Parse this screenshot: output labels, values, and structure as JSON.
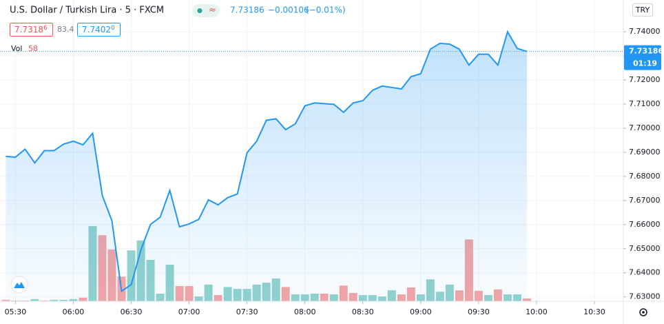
{
  "header": {
    "title": "U.S. Dollar / Turkish Lira · 5 · FXCM",
    "symbol_button": "≈",
    "quote": {
      "last": "7.73186",
      "change": "−0.00106",
      "change_pct": "(−0.01%)"
    },
    "bid": "7.7318",
    "bid_sup": "6",
    "spread": "83.4",
    "ask": "7.7402",
    "ask_sup": "0",
    "volume_label": "Vol",
    "volume_value": "58",
    "currency_button": "TRY",
    "countdown": "01:19"
  },
  "chart_data": {
    "type": "area",
    "x": [
      "05:25",
      "05:30",
      "05:35",
      "05:40",
      "05:45",
      "05:50",
      "05:55",
      "06:00",
      "06:05",
      "06:10",
      "06:15",
      "06:20",
      "06:25",
      "06:30",
      "06:35",
      "06:40",
      "06:45",
      "06:50",
      "06:55",
      "07:00",
      "07:05",
      "07:10",
      "07:15",
      "07:20",
      "07:25",
      "07:30",
      "07:35",
      "07:40",
      "07:45",
      "07:50",
      "07:55",
      "08:00",
      "08:05",
      "08:10",
      "08:15",
      "08:20",
      "08:25",
      "08:30",
      "08:35",
      "08:40",
      "08:45",
      "08:50",
      "08:55",
      "09:00",
      "09:05",
      "09:10",
      "09:15",
      "09:20",
      "09:25",
      "09:30",
      "09:35",
      "09:40",
      "09:45",
      "09:50",
      "09:55"
    ],
    "series": [
      {
        "name": "Price",
        "color": "#2196f3",
        "values": [
          7.6883,
          7.688,
          7.6913,
          7.6856,
          7.6907,
          7.6907,
          7.6934,
          7.6946,
          7.6931,
          7.6979,
          7.6721,
          7.6616,
          7.6324,
          7.6351,
          7.6495,
          7.6601,
          7.6631,
          7.6742,
          7.6591,
          7.6603,
          7.6622,
          7.6703,
          7.6682,
          7.6712,
          7.6727,
          7.6898,
          7.6946,
          7.7033,
          7.7039,
          7.6994,
          7.7018,
          7.7093,
          7.7105,
          7.7102,
          7.7099,
          7.7066,
          7.7105,
          7.7114,
          7.7157,
          7.7175,
          7.7169,
          7.7163,
          7.7214,
          7.7226,
          7.7328,
          7.7352,
          7.7349,
          7.7328,
          7.7262,
          7.7307,
          7.7307,
          7.7262,
          7.74,
          7.7331,
          7.73186
        ]
      },
      {
        "name": "Volume",
        "type": "bar",
        "axis": "y2",
        "values": [
          30,
          15,
          15,
          45,
          15,
          30,
          30,
          45,
          75,
          1580,
          1390,
          1090,
          520,
          1070,
          1280,
          870,
          160,
          770,
          320,
          320,
          100,
          350,
          130,
          300,
          260,
          260,
          350,
          390,
          480,
          300,
          145,
          145,
          160,
          160,
          145,
          330,
          175,
          130,
          130,
          100,
          230,
          145,
          290,
          145,
          460,
          200,
          350,
          230,
          1300,
          220,
          130,
          250,
          145,
          145,
          58
        ],
        "colors": [
          "#f4a5a5",
          "#f4a5a5",
          "#f4a5a5",
          "#92d2cc",
          "#f4a5a5",
          "#92d2cc",
          "#92d2cc",
          "#92d2cc",
          "#f4a5a5",
          "#92d2cc",
          "#f4a5a5",
          "#f4a5a5",
          "#f4a5a5",
          "#92d2cc",
          "#92d2cc",
          "#92d2cc",
          "#92d2cc",
          "#92d2cc",
          "#f4a5a5",
          "#f4a5a5",
          "#92d2cc",
          "#92d2cc",
          "#f4a5a5",
          "#92d2cc",
          "#92d2cc",
          "#92d2cc",
          "#92d2cc",
          "#92d2cc",
          "#92d2cc",
          "#f4a5a5",
          "#92d2cc",
          "#92d2cc",
          "#92d2cc",
          "#f4a5a5",
          "#92d2cc",
          "#f4a5a5",
          "#f4a5a5",
          "#92d2cc",
          "#92d2cc",
          "#92d2cc",
          "#92d2cc",
          "#f4a5a5",
          "#f4a5a5",
          "#92d2cc",
          "#92d2cc",
          "#92d2cc",
          "#92d2cc",
          "#f4a5a5",
          "#f4a5a5",
          "#f4a5a5",
          "#92d2cc",
          "#f4a5a5",
          "#92d2cc",
          "#92d2cc",
          "#f4a5a5"
        ]
      }
    ],
    "xlim": [
      "05:22",
      "10:45"
    ],
    "xticks": [
      "05:30",
      "06:00",
      "06:30",
      "07:00",
      "07:30",
      "08:00",
      "08:30",
      "09:00",
      "09:30",
      "10:00",
      "10:30"
    ],
    "ylim": [
      7.6282,
      7.7532
    ],
    "yticks": [
      {
        "value": 7.74,
        "label": "7.74000"
      },
      {
        "value": 7.73,
        "label": "7.73000"
      },
      {
        "value": 7.72,
        "label": "7.72000"
      },
      {
        "value": 7.71,
        "label": "7.71000"
      },
      {
        "value": 7.7,
        "label": "7.70000"
      },
      {
        "value": 7.69,
        "label": "7.69000"
      },
      {
        "value": 7.68,
        "label": "7.68000"
      },
      {
        "value": 7.67,
        "label": "7.67000"
      },
      {
        "value": 7.66,
        "label": "7.66000"
      },
      {
        "value": 7.65,
        "label": "7.65000"
      },
      {
        "value": 7.64,
        "label": "7.64000"
      },
      {
        "value": 7.63,
        "label": "7.63000"
      }
    ],
    "y2lim": [
      0,
      6336
    ]
  }
}
